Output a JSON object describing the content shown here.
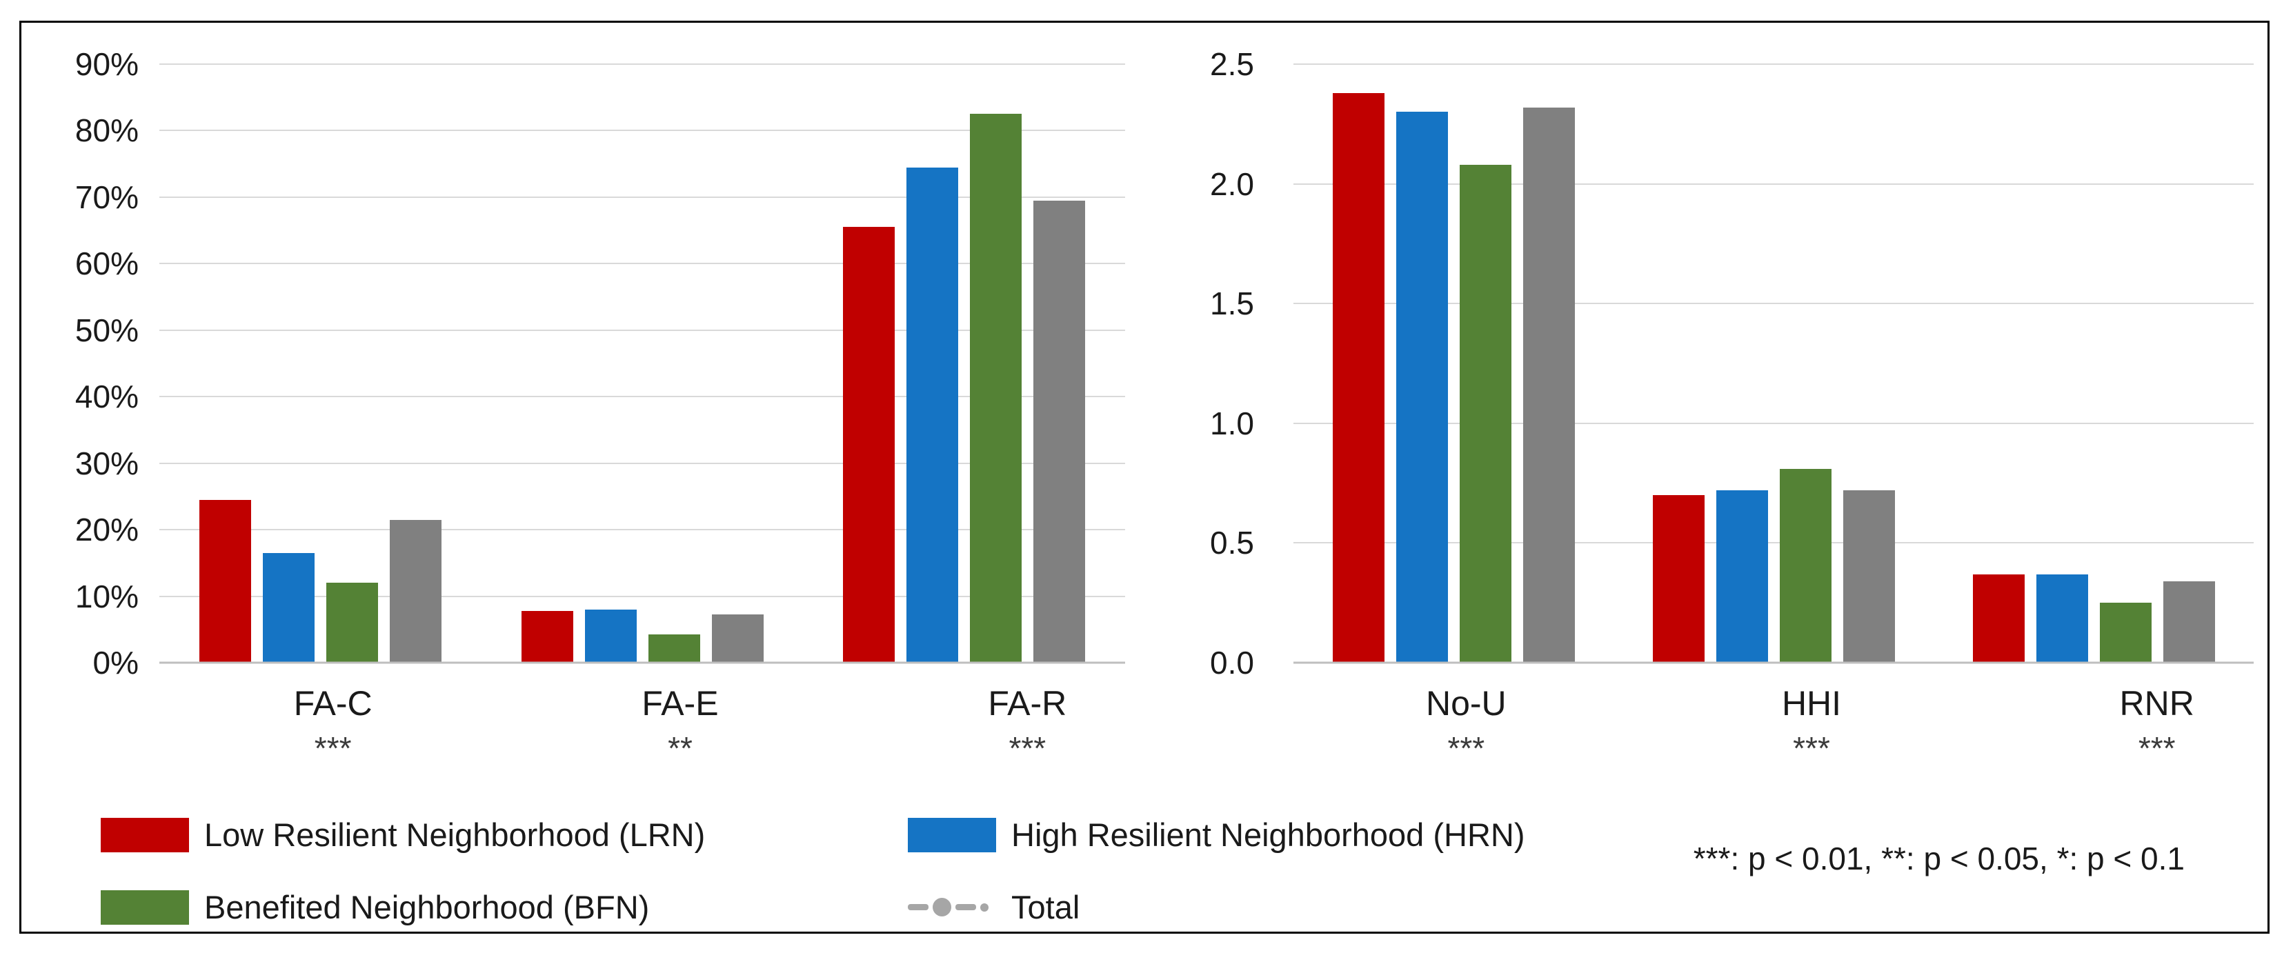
{
  "note": "***: p < 0.01, **: p < 0.05, *: p < 0.1",
  "colors": {
    "lrn": "#C00000",
    "hrn": "#1574C4",
    "bfn": "#548235",
    "total_bar": "#808080",
    "total_marker": "#A6A6A6",
    "gridline": "#D9D9D9",
    "axis_line": "#BFBFBF",
    "text": "#1A1A1A",
    "frame_border": "#000000"
  },
  "chart_data": [
    {
      "type": "bar",
      "panel": "left",
      "title": "",
      "xlabel": "",
      "ylabel": "",
      "categories": [
        "FA-C",
        "FA-E",
        "FA-R"
      ],
      "significance": [
        "***",
        "**",
        "***"
      ],
      "y_ticks": [
        "0%",
        "10%",
        "20%",
        "30%",
        "40%",
        "50%",
        "60%",
        "70%",
        "80%",
        "90%"
      ],
      "ylim": [
        0,
        90
      ],
      "unit": "percent",
      "grid": true,
      "series": [
        {
          "name": "Low Resilient Neighborhood (LRN)",
          "color": "#C00000",
          "values": [
            24.5,
            7.8,
            65.5
          ]
        },
        {
          "name": "High Resilient Neighborhood (HRN)",
          "color": "#1574C4",
          "values": [
            16.5,
            8.0,
            74.5
          ]
        },
        {
          "name": "Benefited Neighborhood (BFN)",
          "color": "#548235",
          "values": [
            12.0,
            4.3,
            82.5
          ]
        },
        {
          "name": "Total",
          "color": "#808080",
          "values": [
            21.5,
            7.3,
            69.5
          ]
        }
      ]
    },
    {
      "type": "bar",
      "panel": "right",
      "title": "",
      "xlabel": "",
      "ylabel": "",
      "categories": [
        "No-U",
        "HHI",
        "RNR"
      ],
      "significance": [
        "***",
        "***",
        "***"
      ],
      "y_ticks": [
        "0.0",
        "0.5",
        "1.0",
        "1.5",
        "2.0",
        "2.5"
      ],
      "ylim": [
        0,
        2.5
      ],
      "unit": "count",
      "grid": true,
      "series": [
        {
          "name": "Low Resilient Neighborhood (LRN)",
          "color": "#C00000",
          "values": [
            2.38,
            0.7,
            0.37
          ]
        },
        {
          "name": "High Resilient Neighborhood (HRN)",
          "color": "#1574C4",
          "values": [
            2.3,
            0.72,
            0.37
          ]
        },
        {
          "name": "Benefited Neighborhood (BFN)",
          "color": "#548235",
          "values": [
            2.08,
            0.81,
            0.25
          ]
        },
        {
          "name": "Total",
          "color": "#808080",
          "values": [
            2.32,
            0.72,
            0.34
          ]
        }
      ]
    }
  ],
  "legend": {
    "items": [
      {
        "label": "Low Resilient Neighborhood (LRN)",
        "swatch": "rect",
        "color": "#C00000"
      },
      {
        "label": "High Resilient Neighborhood (HRN)",
        "swatch": "rect",
        "color": "#1574C4"
      },
      {
        "label": "Benefited Neighborhood (BFN)",
        "swatch": "rect",
        "color": "#548235"
      },
      {
        "label": "Total",
        "swatch": "dashed-line-dot",
        "color": "#A6A6A6"
      }
    ]
  }
}
